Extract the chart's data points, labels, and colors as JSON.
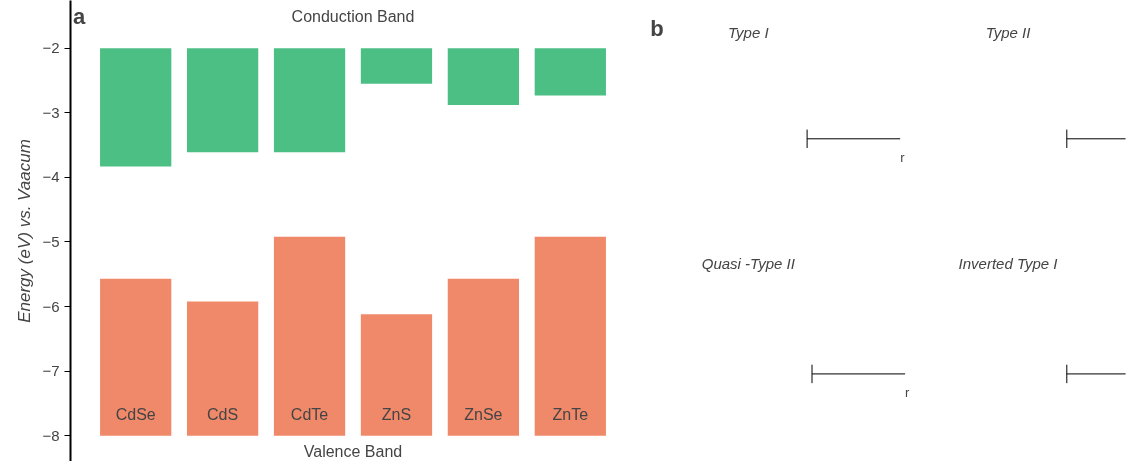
{
  "chart_data": [
    {
      "type": "bar",
      "ylabel": "Energy (eV) vs. Vaacum",
      "categories": [
        "CdSe",
        "CdS",
        "CdTe",
        "ZnS",
        "ZnSe",
        "ZnTe"
      ],
      "series": [
        {
          "color": "#4cbf85",
          "base": [
            -2,
            -2,
            -2,
            -2,
            -2,
            -2
          ],
          "values": [
            -1.83,
            -1.61,
            -1.61,
            -0.55,
            -0.88,
            -0.73
          ]
        },
        {
          "color": "#f0896a",
          "base": [
            -8,
            -8,
            -8,
            -8,
            -8,
            -8
          ],
          "values": [
            2.43,
            2.08,
            3.08,
            1.88,
            2.43,
            3.08
          ]
        }
      ],
      "ylim": [
        -8.4,
        -1.26
      ],
      "yticks": [
        -8,
        -7,
        -6,
        -5,
        -4,
        -3,
        -2
      ],
      "grid": false,
      "annotations": [
        "a",
        "Conduction Band",
        "Valence Band"
      ]
    },
    {
      "type": "other",
      "annotations": [
        "b",
        "Type I",
        "Type II",
        "Quasi -Type II",
        "Inverted Type I",
        "r",
        "r"
      ]
    }
  ]
}
